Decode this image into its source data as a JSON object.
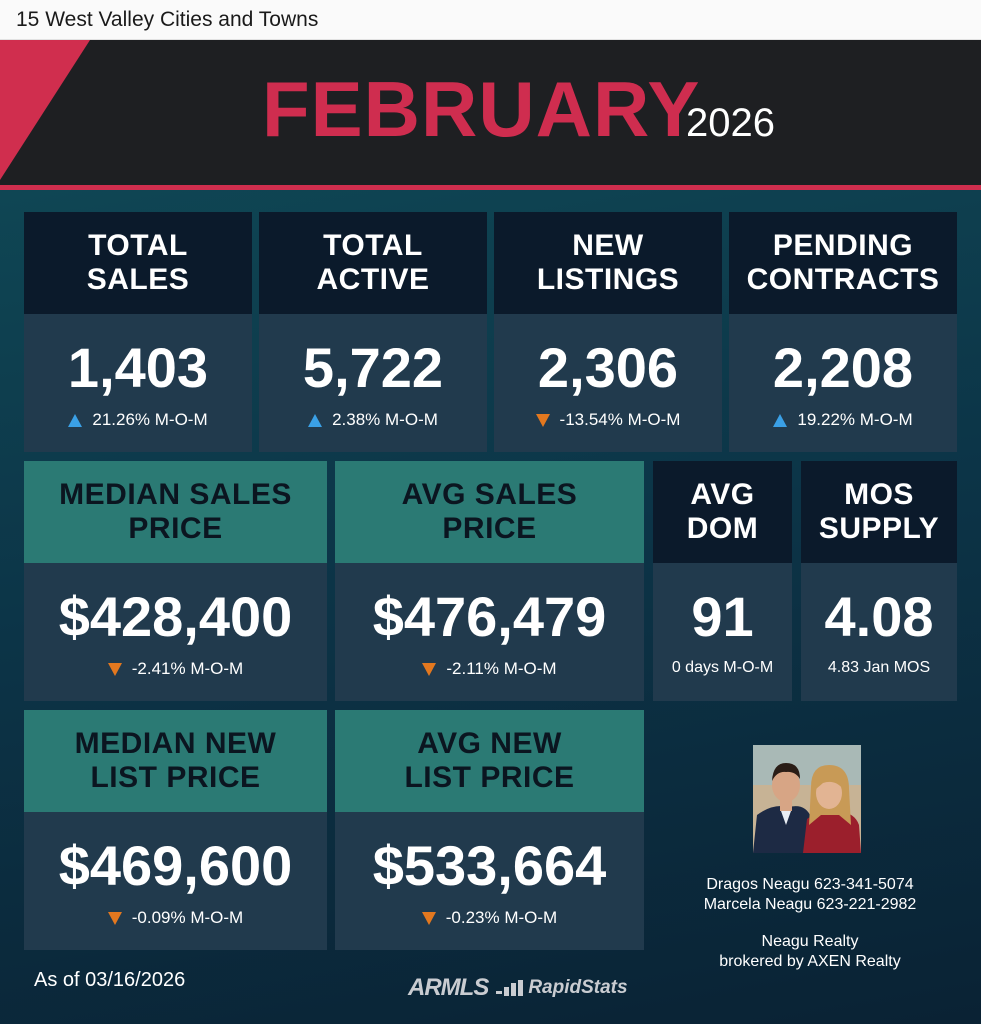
{
  "page_title": "15 West Valley Cities and Towns",
  "header": {
    "month": "FEBRUARY",
    "year": "2026"
  },
  "colors": {
    "accent_red": "#cf2d4f",
    "teal": "#2b7a74",
    "navy": "#0b1a2b",
    "up": "#3aa0e6",
    "down": "#e3781f"
  },
  "tiles": [
    {
      "title_1": "TOTAL",
      "title_2": "SALES",
      "value": "1,403",
      "change": "21.26% M-O-M",
      "direction": "up"
    },
    {
      "title_1": "TOTAL",
      "title_2": "ACTIVE",
      "value": "5,722",
      "change": "2.38% M-O-M",
      "direction": "up"
    },
    {
      "title_1": "NEW",
      "title_2": "LISTINGS",
      "value": "2,306",
      "change": "-13.54% M-O-M",
      "direction": "down"
    },
    {
      "title_1": "PENDING",
      "title_2": "CONTRACTS",
      "value": "2,208",
      "change": "19.22% M-O-M",
      "direction": "up"
    },
    {
      "title_1": "MEDIAN SALES",
      "title_2": "PRICE",
      "value": "$428,400",
      "change": "-2.41% M-O-M",
      "direction": "down"
    },
    {
      "title_1": "AVG SALES",
      "title_2": "PRICE",
      "value": "$476,479",
      "change": "-2.11% M-O-M",
      "direction": "down"
    },
    {
      "title_1": "AVG",
      "title_2": "DOM",
      "value": "91",
      "note": "0 days M-O-M"
    },
    {
      "title_1": "MOS",
      "title_2": "SUPPLY",
      "value": "4.08",
      "note": "4.83 Jan MOS"
    },
    {
      "title_1": "MEDIAN NEW",
      "title_2": "LIST PRICE",
      "value": "$469,600",
      "change": "-0.09% M-O-M",
      "direction": "down"
    },
    {
      "title_1": "AVG NEW",
      "title_2": "LIST PRICE",
      "value": "$533,664",
      "change": "-0.23% M-O-M",
      "direction": "down"
    }
  ],
  "contact": {
    "agent_1": "Dragos Neagu 623-341-5074",
    "agent_2": "Marcela Neagu 623-221-2982",
    "company": "Neagu Realty",
    "brokerage": "brokered by AXEN Realty"
  },
  "footer": {
    "as_of": "As of 03/16/2026",
    "logo_left": "ARMLS",
    "logo_right": "RapidStats"
  }
}
